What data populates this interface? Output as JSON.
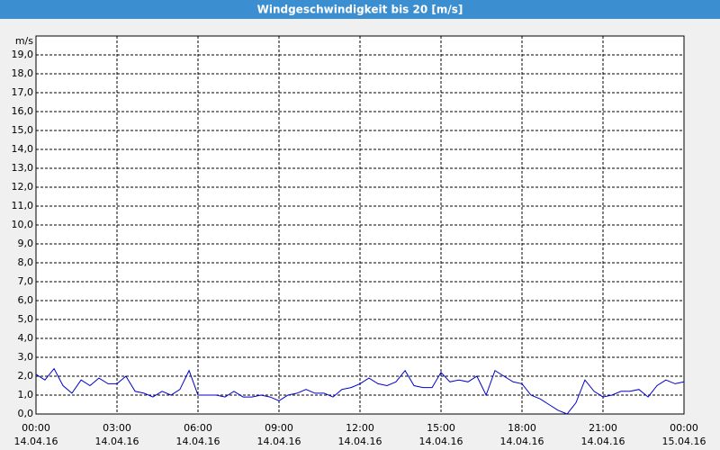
{
  "chart_data": {
    "type": "line",
    "title": "Windgeschwindigkeit bis 20 [m/s]",
    "y_unit": "m/s",
    "ylim": [
      0,
      20
    ],
    "yticks": [
      {
        "value": 0,
        "label": "0,0"
      },
      {
        "value": 1,
        "label": "1,0"
      },
      {
        "value": 2,
        "label": "2,0"
      },
      {
        "value": 3,
        "label": "3,0"
      },
      {
        "value": 4,
        "label": "4,0"
      },
      {
        "value": 5,
        "label": "5,0"
      },
      {
        "value": 6,
        "label": "6,0"
      },
      {
        "value": 7,
        "label": "7,0"
      },
      {
        "value": 8,
        "label": "8,0"
      },
      {
        "value": 9,
        "label": "9,0"
      },
      {
        "value": 10,
        "label": "10,0"
      },
      {
        "value": 11,
        "label": "11,0"
      },
      {
        "value": 12,
        "label": "12,0"
      },
      {
        "value": 13,
        "label": "13,0"
      },
      {
        "value": 14,
        "label": "14,0"
      },
      {
        "value": 15,
        "label": "15,0"
      },
      {
        "value": 16,
        "label": "16,0"
      },
      {
        "value": 17,
        "label": "17,0"
      },
      {
        "value": 18,
        "label": "18,0"
      },
      {
        "value": 19,
        "label": "19,0"
      }
    ],
    "xlim": [
      0,
      24
    ],
    "xticks": [
      {
        "value": 0,
        "label": "00:00"
      },
      {
        "value": 3,
        "label": "03:00"
      },
      {
        "value": 6,
        "label": "06:00"
      },
      {
        "value": 9,
        "label": "09:00"
      },
      {
        "value": 12,
        "label": "12:00"
      },
      {
        "value": 15,
        "label": "15:00"
      },
      {
        "value": 18,
        "label": "18:00"
      },
      {
        "value": 21,
        "label": "21:00"
      },
      {
        "value": 24,
        "label": "00:00"
      }
    ],
    "xtick_dates": [
      "14.04.16",
      "14.04.16",
      "14.04.16",
      "14.04.16",
      "14.04.16",
      "14.04.16",
      "14.04.16",
      "14.04.16",
      "15.04.16"
    ],
    "grid": true,
    "x": [
      0,
      0.33,
      0.67,
      1,
      1.33,
      1.67,
      2,
      2.33,
      2.67,
      3,
      3.33,
      3.67,
      4,
      4.33,
      4.67,
      5,
      5.33,
      5.67,
      6,
      6.33,
      6.67,
      7,
      7.33,
      7.67,
      8,
      8.33,
      8.67,
      9,
      9.33,
      9.67,
      10,
      10.33,
      10.67,
      11,
      11.33,
      11.67,
      12,
      12.33,
      12.67,
      13,
      13.33,
      13.67,
      14,
      14.33,
      14.67,
      15,
      15.33,
      15.67,
      16,
      16.33,
      16.67,
      17,
      17.33,
      17.67,
      18,
      18.33,
      18.67,
      19,
      19.33,
      19.67,
      20,
      20.33,
      20.67,
      21,
      21.33,
      21.67,
      22,
      22.33,
      22.67,
      23,
      23.33,
      23.67,
      24
    ],
    "series": [
      {
        "color": "#0000cc",
        "values": [
          2.1,
          1.8,
          2.4,
          1.5,
          1.1,
          1.8,
          1.5,
          1.9,
          1.6,
          1.6,
          2.0,
          1.2,
          1.1,
          0.9,
          1.2,
          1.0,
          1.3,
          2.3,
          1.0,
          1.0,
          1.0,
          0.9,
          1.2,
          0.9,
          0.9,
          1.0,
          0.9,
          0.7,
          1.0,
          1.1,
          1.3,
          1.1,
          1.1,
          0.9,
          1.3,
          1.4,
          1.6,
          1.9,
          1.6,
          1.5,
          1.7,
          2.3,
          1.5,
          1.4,
          1.4,
          2.2,
          1.7,
          1.8,
          1.7,
          2.0,
          1.0,
          2.3,
          2.0,
          1.7,
          1.6,
          1.0,
          0.8,
          0.5,
          0.2,
          0.0,
          0.6,
          1.8,
          1.2,
          0.9,
          1.0,
          1.2,
          1.2,
          1.3,
          0.9,
          1.5,
          1.8,
          1.6,
          1.7
        ]
      }
    ]
  }
}
